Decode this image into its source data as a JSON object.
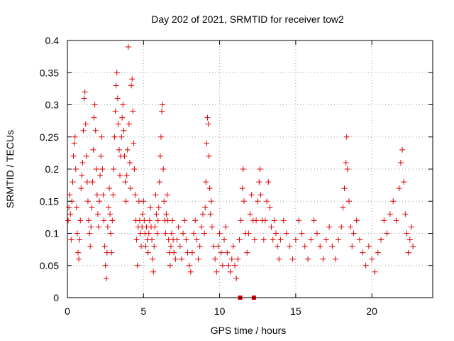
{
  "chart_data": {
    "type": "scatter",
    "title": "Day 202 of 2021, SRMTID for receiver tow2",
    "xlabel": "GPS time / hours",
    "ylabel": "SRMTID / TECUs",
    "xlim": [
      0,
      24
    ],
    "ylim": [
      0,
      0.4
    ],
    "xticks": [
      0,
      5,
      10,
      15,
      20
    ],
    "xtick_labels": [
      "0",
      "5",
      "10",
      "15",
      "20"
    ],
    "yticks": [
      0,
      0.05,
      0.1,
      0.15,
      0.2,
      0.25,
      0.3,
      0.35,
      0.4
    ],
    "ytick_labels": [
      "0",
      "0.05",
      "0.1",
      "0.15",
      "0.2",
      "0.25",
      "0.3",
      "0.35",
      "0.4"
    ],
    "grid": true,
    "color": "#e00000",
    "marker": "plus",
    "series": [
      {
        "name": "SRMTID",
        "points": [
          [
            0.05,
            0.12
          ],
          [
            0.1,
            0.14
          ],
          [
            0.15,
            0.16
          ],
          [
            0.2,
            0.13
          ],
          [
            0.25,
            0.09
          ],
          [
            0.3,
            0.15
          ],
          [
            0.35,
            0.18
          ],
          [
            0.4,
            0.22
          ],
          [
            0.45,
            0.24
          ],
          [
            0.5,
            0.25
          ],
          [
            0.55,
            0.2
          ],
          [
            0.6,
            0.14
          ],
          [
            0.65,
            0.1
          ],
          [
            0.7,
            0.07
          ],
          [
            0.75,
            0.06
          ],
          [
            0.8,
            0.09
          ],
          [
            0.85,
            0.12
          ],
          [
            0.9,
            0.17
          ],
          [
            0.95,
            0.19
          ],
          [
            1.0,
            0.21
          ],
          [
            1.05,
            0.26
          ],
          [
            1.1,
            0.31
          ],
          [
            1.15,
            0.32
          ],
          [
            1.2,
            0.27
          ],
          [
            1.25,
            0.22
          ],
          [
            1.3,
            0.18
          ],
          [
            1.35,
            0.15
          ],
          [
            1.4,
            0.12
          ],
          [
            1.45,
            0.1
          ],
          [
            1.5,
            0.08
          ],
          [
            1.55,
            0.11
          ],
          [
            1.6,
            0.14
          ],
          [
            1.65,
            0.18
          ],
          [
            1.7,
            0.23
          ],
          [
            1.75,
            0.28
          ],
          [
            1.8,
            0.3
          ],
          [
            1.85,
            0.26
          ],
          [
            1.9,
            0.2
          ],
          [
            1.95,
            0.16
          ],
          [
            2.0,
            0.13
          ],
          [
            2.05,
            0.11
          ],
          [
            2.1,
            0.15
          ],
          [
            2.15,
            0.19
          ],
          [
            2.2,
            0.22
          ],
          [
            2.25,
            0.25
          ],
          [
            2.3,
            0.2
          ],
          [
            2.35,
            0.16
          ],
          [
            2.4,
            0.12
          ],
          [
            2.45,
            0.08
          ],
          [
            2.5,
            0.05
          ],
          [
            2.55,
            0.03
          ],
          [
            2.6,
            0.07
          ],
          [
            2.65,
            0.11
          ],
          [
            2.7,
            0.14
          ],
          [
            2.75,
            0.17
          ],
          [
            2.8,
            0.13
          ],
          [
            2.85,
            0.1
          ],
          [
            2.9,
            0.07
          ],
          [
            2.95,
            0.12
          ],
          [
            3.0,
            0.16
          ],
          [
            3.05,
            0.2
          ],
          [
            3.1,
            0.25
          ],
          [
            3.15,
            0.29
          ],
          [
            3.2,
            0.33
          ],
          [
            3.25,
            0.35
          ],
          [
            3.3,
            0.31
          ],
          [
            3.35,
            0.27
          ],
          [
            3.4,
            0.23
          ],
          [
            3.45,
            0.19
          ],
          [
            3.5,
            0.22
          ],
          [
            3.55,
            0.25
          ],
          [
            3.6,
            0.28
          ],
          [
            3.65,
            0.3
          ],
          [
            3.7,
            0.26
          ],
          [
            3.75,
            0.22
          ],
          [
            3.8,
            0.18
          ],
          [
            3.85,
            0.15
          ],
          [
            3.9,
            0.19
          ],
          [
            3.95,
            0.23
          ],
          [
            4.0,
            0.39
          ],
          [
            4.05,
            0.27
          ],
          [
            4.1,
            0.21
          ],
          [
            4.15,
            0.17
          ],
          [
            4.2,
            0.33
          ],
          [
            4.25,
            0.34
          ],
          [
            4.3,
            0.29
          ],
          [
            4.35,
            0.24
          ],
          [
            4.4,
            0.2
          ],
          [
            4.45,
            0.16
          ],
          [
            4.5,
            0.12
          ],
          [
            4.55,
            0.09
          ],
          [
            4.6,
            0.05
          ],
          [
            4.65,
            0.11
          ],
          [
            4.7,
            0.15
          ],
          [
            4.75,
            0.12
          ],
          [
            4.8,
            0.1
          ],
          [
            4.85,
            0.08
          ],
          [
            4.9,
            0.11
          ],
          [
            4.95,
            0.13
          ],
          [
            5.0,
            0.15
          ],
          [
            5.05,
            0.12
          ],
          [
            5.1,
            0.1
          ],
          [
            5.15,
            0.08
          ],
          [
            5.2,
            0.11
          ],
          [
            5.25,
            0.09
          ],
          [
            5.3,
            0.07
          ],
          [
            5.35,
            0.1
          ],
          [
            5.4,
            0.12
          ],
          [
            5.45,
            0.14
          ],
          [
            5.5,
            0.11
          ],
          [
            5.55,
            0.09
          ],
          [
            5.6,
            0.06
          ],
          [
            5.65,
            0.04
          ],
          [
            5.7,
            0.08
          ],
          [
            5.75,
            0.11
          ],
          [
            5.8,
            0.16
          ],
          [
            5.85,
            0.13
          ],
          [
            5.9,
            0.1
          ],
          [
            5.95,
            0.12
          ],
          [
            6.0,
            0.14
          ],
          [
            6.05,
            0.18
          ],
          [
            6.1,
            0.22
          ],
          [
            6.15,
            0.25
          ],
          [
            6.2,
            0.29
          ],
          [
            6.25,
            0.3
          ],
          [
            6.3,
            0.2
          ],
          [
            6.35,
            0.15
          ],
          [
            6.4,
            0.12
          ],
          [
            6.45,
            0.1
          ],
          [
            6.5,
            0.13
          ],
          [
            6.55,
            0.16
          ],
          [
            6.6,
            0.12
          ],
          [
            6.65,
            0.09
          ],
          [
            6.7,
            0.07
          ],
          [
            6.75,
            0.05
          ],
          [
            6.8,
            0.08
          ],
          [
            6.85,
            0.1
          ],
          [
            6.9,
            0.12
          ],
          [
            6.95,
            0.09
          ],
          [
            7.0,
            0.07
          ],
          [
            7.1,
            0.06
          ],
          [
            7.2,
            0.09
          ],
          [
            7.3,
            0.11
          ],
          [
            7.4,
            0.08
          ],
          [
            7.5,
            0.06
          ],
          [
            7.6,
            0.1
          ],
          [
            7.7,
            0.12
          ],
          [
            7.8,
            0.09
          ],
          [
            7.9,
            0.07
          ],
          [
            8.0,
            0.05
          ],
          [
            8.1,
            0.04
          ],
          [
            8.2,
            0.07
          ],
          [
            8.3,
            0.1
          ],
          [
            8.4,
            0.12
          ],
          [
            8.5,
            0.09
          ],
          [
            8.6,
            0.06
          ],
          [
            8.7,
            0.08
          ],
          [
            8.8,
            0.11
          ],
          [
            8.9,
            0.13
          ],
          [
            9.0,
            0.1
          ],
          [
            9.05,
            0.14
          ],
          [
            9.1,
            0.18
          ],
          [
            9.15,
            0.24
          ],
          [
            9.2,
            0.28
          ],
          [
            9.25,
            0.27
          ],
          [
            9.3,
            0.22
          ],
          [
            9.35,
            0.17
          ],
          [
            9.4,
            0.13
          ],
          [
            9.45,
            0.15
          ],
          [
            9.5,
            0.11
          ],
          [
            9.6,
            0.08
          ],
          [
            9.7,
            0.06
          ],
          [
            9.8,
            0.04
          ],
          [
            9.9,
            0.08
          ],
          [
            10.0,
            0.1
          ],
          [
            10.1,
            0.07
          ],
          [
            10.2,
            0.05
          ],
          [
            10.3,
            0.09
          ],
          [
            10.4,
            0.11
          ],
          [
            10.5,
            0.07
          ],
          [
            10.6,
            0.05
          ],
          [
            10.7,
            0.04
          ],
          [
            10.8,
            0.06
          ],
          [
            10.9,
            0.08
          ],
          [
            11.0,
            0.05
          ],
          [
            11.1,
            0.03
          ],
          [
            11.2,
            0.06
          ],
          [
            11.3,
            0.09
          ],
          [
            11.4,
            0.12
          ],
          [
            11.5,
            0.17
          ],
          [
            11.55,
            0.2
          ],
          [
            11.6,
            0.15
          ],
          [
            11.7,
            0.1
          ],
          [
            11.8,
            0.07
          ],
          [
            11.9,
            0.1
          ],
          [
            12.0,
            0.13
          ],
          [
            12.1,
            0.16
          ],
          [
            12.2,
            0.12
          ],
          [
            12.3,
            0.09
          ],
          [
            12.4,
            0.12
          ],
          [
            12.5,
            0.15
          ],
          [
            12.6,
            0.18
          ],
          [
            12.65,
            0.2
          ],
          [
            12.7,
            0.16
          ],
          [
            12.8,
            0.12
          ],
          [
            12.9,
            0.09
          ],
          [
            13.0,
            0.12
          ],
          [
            13.1,
            0.15
          ],
          [
            13.2,
            0.18
          ],
          [
            13.3,
            0.14
          ],
          [
            13.4,
            0.11
          ],
          [
            13.5,
            0.09
          ],
          [
            13.6,
            0.12
          ],
          [
            13.7,
            0.1
          ],
          [
            13.8,
            0.08
          ],
          [
            13.9,
            0.06
          ],
          [
            14.0,
            0.09
          ],
          [
            14.2,
            0.12
          ],
          [
            14.4,
            0.1
          ],
          [
            14.6,
            0.08
          ],
          [
            14.8,
            0.06
          ],
          [
            15.0,
            0.09
          ],
          [
            15.2,
            0.12
          ],
          [
            15.4,
            0.1
          ],
          [
            15.6,
            0.08
          ],
          [
            15.8,
            0.06
          ],
          [
            16.0,
            0.09
          ],
          [
            16.2,
            0.12
          ],
          [
            16.4,
            0.1
          ],
          [
            16.6,
            0.08
          ],
          [
            16.8,
            0.06
          ],
          [
            17.0,
            0.09
          ],
          [
            17.2,
            0.11
          ],
          [
            17.4,
            0.08
          ],
          [
            17.6,
            0.06
          ],
          [
            17.8,
            0.09
          ],
          [
            18.0,
            0.11
          ],
          [
            18.1,
            0.14
          ],
          [
            18.2,
            0.17
          ],
          [
            18.3,
            0.21
          ],
          [
            18.35,
            0.25
          ],
          [
            18.4,
            0.2
          ],
          [
            18.5,
            0.15
          ],
          [
            18.6,
            0.11
          ],
          [
            18.7,
            0.08
          ],
          [
            18.8,
            0.1
          ],
          [
            19.0,
            0.12
          ],
          [
            19.2,
            0.09
          ],
          [
            19.4,
            0.07
          ],
          [
            19.6,
            0.05
          ],
          [
            19.8,
            0.08
          ],
          [
            20.0,
            0.06
          ],
          [
            20.2,
            0.04
          ],
          [
            20.4,
            0.07
          ],
          [
            20.6,
            0.09
          ],
          [
            20.8,
            0.12
          ],
          [
            21.0,
            0.1
          ],
          [
            21.2,
            0.13
          ],
          [
            21.4,
            0.15
          ],
          [
            21.6,
            0.12
          ],
          [
            21.8,
            0.17
          ],
          [
            21.9,
            0.21
          ],
          [
            22.0,
            0.23
          ],
          [
            22.1,
            0.18
          ],
          [
            22.2,
            0.13
          ],
          [
            22.3,
            0.1
          ],
          [
            22.4,
            0.07
          ],
          [
            22.5,
            0.09
          ],
          [
            22.6,
            0.11
          ],
          [
            22.7,
            0.08
          ]
        ]
      }
    ],
    "markers": [
      [
        11.35,
        0.0
      ],
      [
        12.25,
        0.0
      ]
    ]
  }
}
